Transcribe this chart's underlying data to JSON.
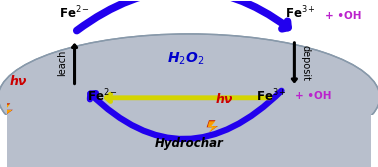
{
  "bg_color": "#ffffff",
  "hydrochar_color": "#b8bfcc",
  "hydrochar_edge": "#8899aa",
  "blue_arrow_color": "#2200ee",
  "yellow_arrow_color": "#dddd00",
  "black_arrow_color": "#000000",
  "hv_color": "#cc0000",
  "fe2_color": "#000000",
  "fe3_color": "#000000",
  "oh_color": "#bb22cc",
  "h2o2_color": "#0000cc",
  "leach_color": "#000000",
  "deposit_color": "#000000",
  "hydrochar_label": "Hydrochar",
  "h2o2_label": "H$_2$O$_2$",
  "leach_label": "leach",
  "deposit_label": "deposit",
  "hv_label": "hν",
  "fe2_sup": "2−",
  "fe3_sup": "3+",
  "oh_text": "+ •OH"
}
